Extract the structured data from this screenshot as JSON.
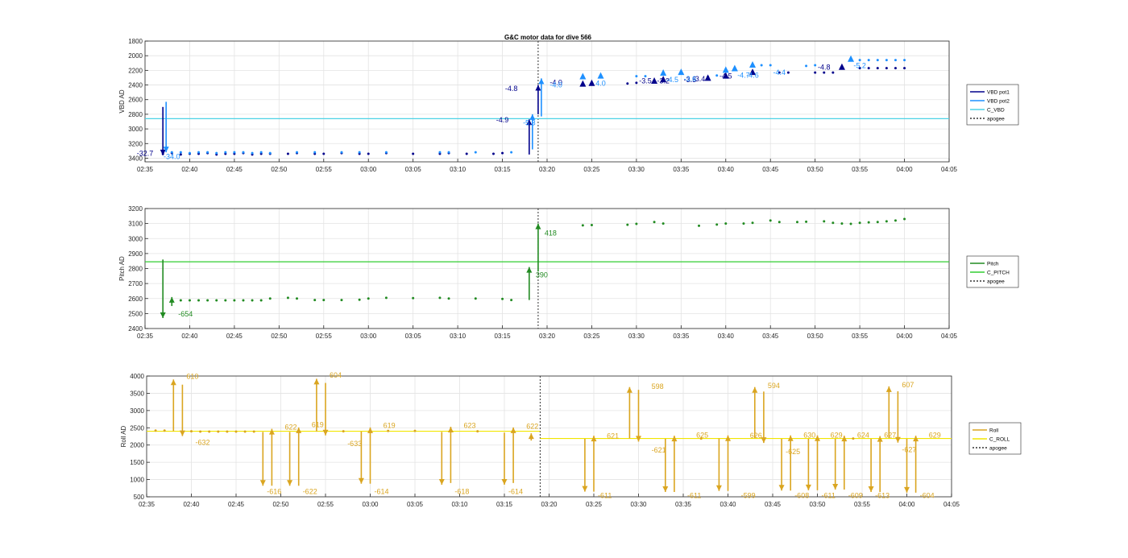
{
  "title": "G&C motor data for dive 566",
  "apogee_time": "03:19",
  "x_ticks": [
    "02:35",
    "02:40",
    "02:45",
    "02:50",
    "02:55",
    "03:00",
    "03:05",
    "03:10",
    "03:15",
    "03:20",
    "03:25",
    "03:30",
    "03:35",
    "03:40",
    "03:45",
    "03:50",
    "03:55",
    "04:00",
    "04:05"
  ],
  "colors": {
    "vbd_pot1": "#00008b",
    "vbd_pot2": "#1e90ff",
    "c_vbd": "#4dd2e6",
    "pitch": "#228b22",
    "c_pitch": "#32cd32",
    "roll": "#daa520",
    "c_roll": "#f2e600",
    "apogee": "#333333",
    "grid": "#e3e3e3",
    "axis": "#262626"
  },
  "chart_data": [
    {
      "type": "line",
      "panel": "vbd",
      "title": "G&C motor data for dive 566",
      "ylabel": "VBD AD",
      "ylim": [
        1800,
        3450
      ],
      "y_reversed": true,
      "yticks": [
        1800,
        2000,
        2200,
        2400,
        2600,
        2800,
        3000,
        3200,
        3400
      ],
      "legend": [
        "VBD pot1",
        "VBD pot2",
        "C_VBD",
        "apogee"
      ],
      "legend_placement": "outside-right",
      "grid": true,
      "c_vbd": 2860,
      "pot1_points": [
        [
          "02:37",
          3340
        ],
        [
          "02:38",
          3330
        ],
        [
          "02:39",
          3350
        ],
        [
          "02:40",
          3340
        ],
        [
          "02:41",
          3340
        ],
        [
          "02:42",
          3330
        ],
        [
          "02:43",
          3350
        ],
        [
          "02:44",
          3340
        ],
        [
          "02:45",
          3340
        ],
        [
          "02:46",
          3330
        ],
        [
          "02:47",
          3350
        ],
        [
          "02:48",
          3340
        ],
        [
          "02:49",
          3340
        ],
        [
          "02:51",
          3340
        ],
        [
          "02:52",
          3330
        ],
        [
          "02:54",
          3340
        ],
        [
          "02:55",
          3340
        ],
        [
          "02:57",
          3330
        ],
        [
          "02:59",
          3340
        ],
        [
          "03:00",
          3340
        ],
        [
          "03:02",
          3330
        ],
        [
          "03:05",
          3340
        ],
        [
          "03:08",
          3340
        ],
        [
          "03:09",
          3330
        ],
        [
          "03:11",
          3340
        ],
        [
          "03:14",
          3340
        ],
        [
          "03:15",
          3330
        ],
        [
          "03:29",
          2380
        ],
        [
          "03:30",
          2370
        ],
        [
          "03:38",
          2290
        ],
        [
          "03:40",
          2280
        ],
        [
          "03:46",
          2230
        ],
        [
          "03:47",
          2230
        ],
        [
          "03:50",
          2230
        ],
        [
          "03:51",
          2230
        ],
        [
          "03:52",
          2230
        ],
        [
          "03:55",
          2170
        ],
        [
          "03:56",
          2170
        ],
        [
          "03:57",
          2170
        ],
        [
          "03:58",
          2170
        ],
        [
          "03:59",
          2170
        ],
        [
          "04:00",
          2170
        ]
      ],
      "pot2_points": [
        [
          "02:38",
          3320
        ],
        [
          "02:39",
          3320
        ],
        [
          "02:40",
          3330
        ],
        [
          "02:41",
          3320
        ],
        [
          "02:42",
          3320
        ],
        [
          "02:43",
          3330
        ],
        [
          "02:44",
          3320
        ],
        [
          "02:45",
          3320
        ],
        [
          "02:46",
          3320
        ],
        [
          "02:47",
          3330
        ],
        [
          "02:48",
          3320
        ],
        [
          "02:49",
          3330
        ],
        [
          "02:52",
          3320
        ],
        [
          "02:54",
          3320
        ],
        [
          "02:57",
          3320
        ],
        [
          "02:59",
          3320
        ],
        [
          "03:02",
          3320
        ],
        [
          "03:08",
          3320
        ],
        [
          "03:09",
          3320
        ],
        [
          "03:12",
          3320
        ],
        [
          "03:16",
          3320
        ],
        [
          "03:30",
          2280
        ],
        [
          "03:31",
          2280
        ],
        [
          "03:39",
          2270
        ],
        [
          "03:41",
          2170
        ],
        [
          "03:44",
          2130
        ],
        [
          "03:45",
          2130
        ],
        [
          "03:49",
          2140
        ],
        [
          "03:50",
          2130
        ],
        [
          "03:54",
          2060
        ],
        [
          "03:55",
          2060
        ],
        [
          "03:56",
          2060
        ],
        [
          "03:57",
          2060
        ],
        [
          "03:58",
          2060
        ],
        [
          "03:59",
          2060
        ],
        [
          "04:00",
          2060
        ]
      ],
      "pot1_arrows": [
        [
          "02:37",
          2700,
          3360
        ],
        [
          "03:18",
          3350,
          2870
        ],
        [
          "03:19",
          2800,
          2400
        ]
      ],
      "pot2_arrows": [
        [
          "02:37",
          2630,
          3320
        ],
        [
          "03:18",
          3280,
          2800
        ],
        [
          "03:19",
          2830,
          2310
        ]
      ],
      "pot1_triangles": [
        [
          "03:24",
          2390
        ],
        [
          "03:25",
          2380
        ],
        [
          "03:32",
          2350
        ],
        [
          "03:33",
          2330
        ],
        [
          "03:38",
          2310
        ],
        [
          "03:40",
          2280
        ],
        [
          "03:43",
          2230
        ],
        [
          "03:53",
          2160
        ]
      ],
      "pot2_triangles": [
        [
          "03:24",
          2290
        ],
        [
          "03:26",
          2280
        ],
        [
          "03:33",
          2240
        ],
        [
          "03:35",
          2230
        ],
        [
          "03:40",
          2200
        ],
        [
          "03:41",
          2180
        ],
        [
          "03:43",
          2130
        ],
        [
          "03:54",
          2050
        ]
      ],
      "labels_pot1": [
        [
          "02:35",
          3370,
          "-32.7"
        ],
        [
          "03:16",
          2480,
          "-4.8"
        ],
        [
          "03:15",
          2910,
          "-4.9"
        ],
        [
          "03:21",
          2400,
          "-4.0"
        ],
        [
          "03:31",
          2380,
          "-3.5"
        ],
        [
          "03:33",
          2380,
          "-3.2"
        ],
        [
          "03:36",
          2360,
          "-3.5"
        ],
        [
          "03:37",
          2350,
          "-3.4"
        ],
        [
          "03:40",
          2310,
          "-4.5"
        ],
        [
          "03:51",
          2190,
          "-4.8"
        ]
      ],
      "labels_pot2": [
        [
          "02:38",
          3410,
          "-34.0"
        ],
        [
          "03:18",
          2950,
          "-5.3"
        ],
        [
          "03:21",
          2430,
          "-4.0"
        ],
        [
          "03:26",
          2410,
          "4.0"
        ],
        [
          "03:34",
          2360,
          "-4.5"
        ],
        [
          "03:36",
          2350,
          "-3.6"
        ],
        [
          "03:42",
          2300,
          "-4.7"
        ],
        [
          "03:43",
          2300,
          "-4.6"
        ],
        [
          "03:46",
          2260,
          "-4.4"
        ],
        [
          "03:55",
          2170,
          "-5.2"
        ]
      ]
    },
    {
      "type": "line",
      "panel": "pitch",
      "ylabel": "Pitch AD",
      "ylim": [
        2400,
        3200
      ],
      "yticks": [
        2400,
        2500,
        2600,
        2700,
        2800,
        2900,
        3000,
        3100,
        3200
      ],
      "legend": [
        "Pitch",
        "C_PITCH",
        "apogee"
      ],
      "legend_placement": "outside-right",
      "grid": true,
      "c_pitch": 2845,
      "points": [
        [
          "02:39",
          2588
        ],
        [
          "02:40",
          2588
        ],
        [
          "02:41",
          2588
        ],
        [
          "02:42",
          2588
        ],
        [
          "02:43",
          2588
        ],
        [
          "02:44",
          2588
        ],
        [
          "02:45",
          2588
        ],
        [
          "02:46",
          2588
        ],
        [
          "02:47",
          2588
        ],
        [
          "02:48",
          2588
        ],
        [
          "02:49",
          2600
        ],
        [
          "02:51",
          2605
        ],
        [
          "02:52",
          2600
        ],
        [
          "02:54",
          2590
        ],
        [
          "02:55",
          2590
        ],
        [
          "02:57",
          2590
        ],
        [
          "02:59",
          2592
        ],
        [
          "03:00",
          2600
        ],
        [
          "03:02",
          2605
        ],
        [
          "03:05",
          2603
        ],
        [
          "03:08",
          2605
        ],
        [
          "03:09",
          2600
        ],
        [
          "03:12",
          2600
        ],
        [
          "03:15",
          2597
        ],
        [
          "03:16",
          2590
        ],
        [
          "03:24",
          3088
        ],
        [
          "03:25",
          3090
        ],
        [
          "03:29",
          3092
        ],
        [
          "03:30",
          3098
        ],
        [
          "03:32",
          3110
        ],
        [
          "03:33",
          3100
        ],
        [
          "03:37",
          3085
        ],
        [
          "03:39",
          3093
        ],
        [
          "03:40",
          3100
        ],
        [
          "03:42",
          3100
        ],
        [
          "03:43",
          3105
        ],
        [
          "03:45",
          3120
        ],
        [
          "03:46",
          3110
        ],
        [
          "03:48",
          3110
        ],
        [
          "03:49",
          3112
        ],
        [
          "03:51",
          3115
        ],
        [
          "03:52",
          3105
        ],
        [
          "03:53",
          3100
        ],
        [
          "03:54",
          3098
        ],
        [
          "03:55",
          3105
        ],
        [
          "03:56",
          3108
        ],
        [
          "03:57",
          3110
        ],
        [
          "03:58",
          3115
        ],
        [
          "03:59",
          3120
        ],
        [
          "04:00",
          3130
        ]
      ],
      "arrows": [
        [
          "02:37",
          2860,
          2470
        ],
        [
          "02:38",
          2550,
          2610
        ],
        [
          "03:18",
          2590,
          2810
        ],
        [
          "03:19",
          2780,
          3100
        ]
      ],
      "labels": [
        [
          "02:38",
          2480,
          "-654"
        ],
        [
          "03:19",
          3020,
          "418"
        ],
        [
          "03:18",
          2740,
          "390"
        ]
      ]
    },
    {
      "type": "line",
      "panel": "roll",
      "ylabel": "Roll AD",
      "ylim": [
        500,
        4000
      ],
      "yticks": [
        500,
        1000,
        1500,
        2000,
        2500,
        3000,
        3500,
        4000
      ],
      "legend": [
        "Roll",
        "C_ROLL",
        "apogee"
      ],
      "legend_placement": "outside-right",
      "grid": true,
      "c_roll_before": 2400,
      "c_roll_after": 2190,
      "points": [
        [
          "02:36",
          2420
        ],
        [
          "02:37",
          2420
        ],
        [
          "02:40",
          2400
        ],
        [
          "02:41",
          2390
        ],
        [
          "02:42",
          2390
        ],
        [
          "02:43",
          2390
        ],
        [
          "02:44",
          2390
        ],
        [
          "02:45",
          2390
        ],
        [
          "02:46",
          2390
        ],
        [
          "02:47",
          2390
        ],
        [
          "02:57",
          2400
        ],
        [
          "03:02",
          2410
        ],
        [
          "03:05",
          2410
        ],
        [
          "03:09",
          2400
        ],
        [
          "03:12",
          2400
        ],
        [
          "03:37",
          2190
        ],
        [
          "03:54",
          2190
        ]
      ],
      "arrows": [
        [
          "02:38",
          2400,
          3900
        ],
        [
          "02:39",
          3750,
          2260
        ],
        [
          "02:48",
          2380,
          820
        ],
        [
          "02:49",
          820,
          2470
        ],
        [
          "02:51",
          2380,
          820
        ],
        [
          "02:52",
          820,
          2510
        ],
        [
          "02:54",
          2390,
          3920
        ],
        [
          "02:55",
          3800,
          2280
        ],
        [
          "02:59",
          2390,
          880
        ],
        [
          "03:00",
          880,
          2510
        ],
        [
          "03:08",
          2380,
          850
        ],
        [
          "03:09",
          900,
          2530
        ],
        [
          "03:15",
          2360,
          850
        ],
        [
          "03:16",
          900,
          2510
        ],
        [
          "03:24",
          2180,
          650
        ],
        [
          "03:25",
          650,
          2270
        ],
        [
          "03:29",
          2190,
          3680
        ],
        [
          "03:30",
          3600,
          2100
        ],
        [
          "03:33",
          2180,
          640
        ],
        [
          "03:34",
          640,
          2270
        ],
        [
          "03:39",
          2190,
          670
        ],
        [
          "03:40",
          670,
          2280
        ],
        [
          "03:43",
          2200,
          3680
        ],
        [
          "03:44",
          3550,
          2060
        ],
        [
          "03:46",
          2180,
          680
        ],
        [
          "03:47",
          680,
          2280
        ],
        [
          "03:49",
          2180,
          690
        ],
        [
          "03:50",
          690,
          2280
        ],
        [
          "03:52",
          2180,
          710
        ],
        [
          "03:53",
          710,
          2270
        ],
        [
          "03:56",
          2180,
          640
        ],
        [
          "03:57",
          640,
          2260
        ],
        [
          "03:58",
          2200,
          3700
        ],
        [
          "03:59",
          3560,
          2070
        ],
        [
          "04:00",
          2180,
          620
        ],
        [
          "04:01",
          620,
          2270
        ]
      ],
      "small_arrow": [
        "03:18",
        2130,
        2340
      ],
      "labels": [
        [
          "02:39",
          3990,
          "610"
        ],
        [
          "02:40",
          2080,
          "-632"
        ],
        [
          "02:48",
          650,
          "-616"
        ],
        [
          "02:50",
          2520,
          "622"
        ],
        [
          "02:52",
          650,
          "-622"
        ],
        [
          "02:53",
          2590,
          "619"
        ],
        [
          "02:55",
          4020,
          "604"
        ],
        [
          "02:57",
          2040,
          "-633"
        ],
        [
          "03:00",
          650,
          "-614"
        ],
        [
          "03:01",
          2570,
          "619"
        ],
        [
          "03:09",
          650,
          "-618"
        ],
        [
          "03:10",
          2560,
          "623"
        ],
        [
          "03:15",
          650,
          "-614"
        ],
        [
          "03:17",
          2540,
          "622"
        ],
        [
          "03:25",
          530,
          "-611"
        ],
        [
          "03:26",
          2260,
          "621"
        ],
        [
          "03:31",
          3700,
          "598"
        ],
        [
          "03:31",
          1850,
          "-621"
        ],
        [
          "03:35",
          530,
          "-611"
        ],
        [
          "03:36",
          2290,
          "625"
        ],
        [
          "03:41",
          530,
          "-599"
        ],
        [
          "03:42",
          2270,
          "626"
        ],
        [
          "03:44",
          3720,
          "594"
        ],
        [
          "03:46",
          1810,
          "-625"
        ],
        [
          "03:47",
          530,
          "-608"
        ],
        [
          "03:48",
          2280,
          "630"
        ],
        [
          "03:50",
          530,
          "-611"
        ],
        [
          "03:51",
          2290,
          "629"
        ],
        [
          "03:53",
          530,
          "-609"
        ],
        [
          "03:54",
          2280,
          "624"
        ],
        [
          "03:56",
          530,
          "-613"
        ],
        [
          "03:57",
          2280,
          "627"
        ],
        [
          "03:59",
          3740,
          "607"
        ],
        [
          "03:59",
          1860,
          "-627"
        ],
        [
          "04:01",
          530,
          "-604"
        ],
        [
          "04:02",
          2290,
          "629"
        ]
      ]
    }
  ]
}
